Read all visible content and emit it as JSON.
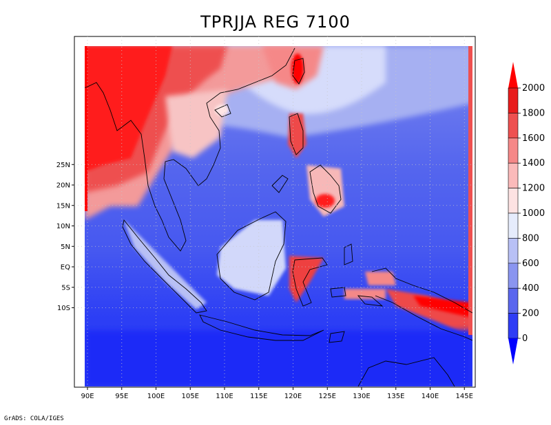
{
  "title": "TPRJJA REG 7100",
  "credit": "GrADS: COLA/IGES",
  "map": {
    "lon_labels": [
      "90E",
      "95E",
      "100E",
      "105E",
      "110E",
      "115E",
      "120E",
      "125E",
      "130E",
      "135E",
      "140E",
      "145E"
    ],
    "lat_labels": [
      "25N",
      "20N",
      "15N",
      "10N",
      "5N",
      "EQ",
      "5S",
      "10S"
    ],
    "lon_range": [
      89,
      146.5
    ],
    "lat_range": [
      -14.5,
      27.5
    ],
    "field": "precipitation (JJA)"
  },
  "colorbar": {
    "levels": [
      "0",
      "200",
      "400",
      "600",
      "800",
      "1000",
      "1200",
      "1400",
      "1600",
      "1800",
      "2000"
    ],
    "colors": [
      "#0000ff",
      "#2e3cf5",
      "#5a66ee",
      "#8a95f0",
      "#b8c0f5",
      "#e6ecfc",
      "#fde2e2",
      "#fbbaba",
      "#f58888",
      "#ee5050",
      "#e81c1c",
      "#ff0000"
    ]
  }
}
